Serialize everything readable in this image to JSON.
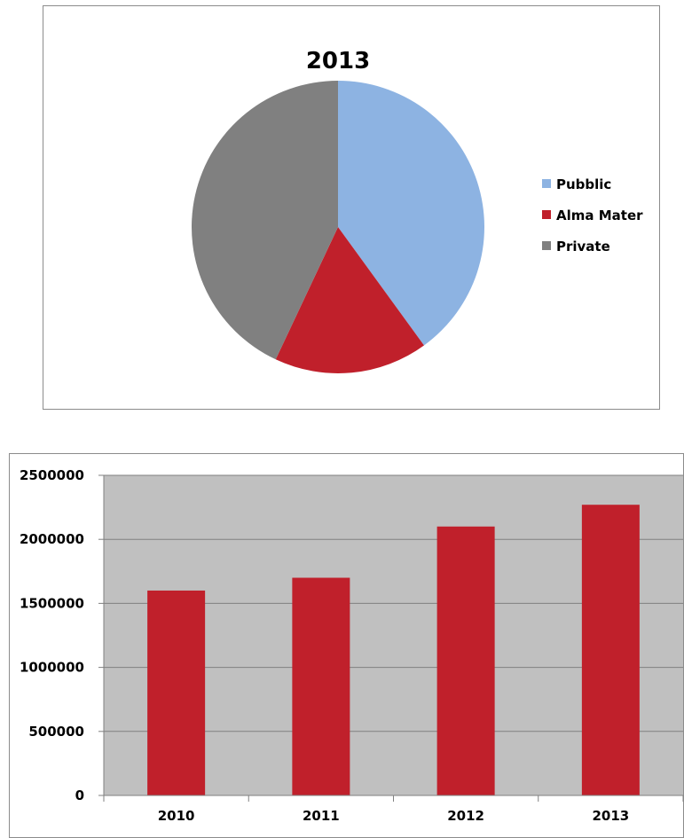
{
  "chart_data": [
    {
      "type": "pie",
      "title": "2013",
      "categories": [
        "Pubblic",
        "Alma Mater",
        "Private"
      ],
      "values": [
        40,
        17,
        43
      ],
      "colors": [
        "#8db3e2",
        "#c0202b",
        "#808080"
      ],
      "legend_position": "right",
      "start_angle": "12 o'clock, clockwise"
    },
    {
      "type": "bar",
      "categories": [
        "2010",
        "2011",
        "2012",
        "2013"
      ],
      "values": [
        1600000,
        1700000,
        2100000,
        2270000
      ],
      "ylim": [
        0,
        2500000
      ],
      "yticks": [
        "0",
        "500000",
        "1000000",
        "1500000",
        "2000000",
        "2500000"
      ],
      "bar_color": "#c0202b",
      "plot_background": "#c0c0c0",
      "gridlines": true,
      "xlabel": "",
      "ylabel": ""
    }
  ]
}
